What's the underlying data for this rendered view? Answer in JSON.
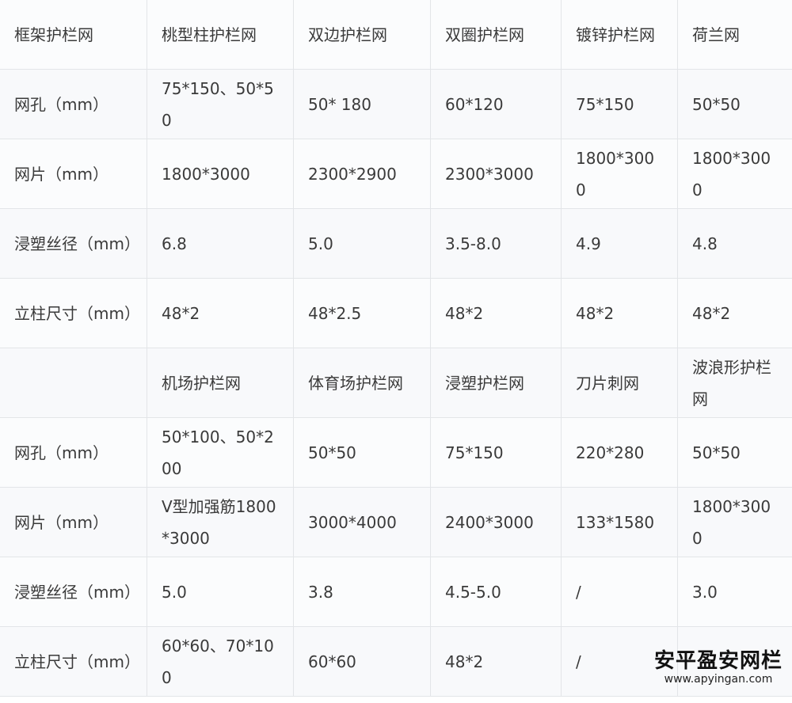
{
  "rows": [
    [
      "框架护栏网",
      "桃型柱护栏网",
      "双边护栏网",
      "双圈护栏网",
      "镀锌护栏网",
      "荷兰网"
    ],
    [
      "网孔（mm）",
      "75*150、50*50",
      "50* 180",
      "60*120",
      "75*150",
      "50*50"
    ],
    [
      "网片（mm）",
      "1800*3000",
      "2300*2900",
      "2300*3000",
      "1800*3000",
      "1800*3000"
    ],
    [
      "浸塑丝径（mm）",
      "6.8",
      "5.0",
      "3.5-8.0",
      "4.9",
      "4.8"
    ],
    [
      "立柱尺寸（mm）",
      "48*2",
      "48*2.5",
      "48*2",
      "48*2",
      "48*2"
    ],
    [
      "",
      "机场护栏网",
      "体育场护栏网",
      "浸塑护栏网",
      "刀片刺网",
      "波浪形护栏网"
    ],
    [
      "网孔（mm）",
      "50*100、50*200",
      "50*50",
      "75*150",
      "220*280",
      "50*50"
    ],
    [
      "网片（mm）",
      "V型加强筋1800*3000",
      "3000*4000",
      "2400*3000",
      "133*1580",
      "1800*3000"
    ],
    [
      "浸塑丝径（mm）",
      "5.0",
      "3.8",
      "4.5-5.0",
      "/",
      "3.0"
    ],
    [
      "立柱尺寸（mm）",
      "60*60、70*100",
      "60*60",
      "48*2",
      "/",
      ""
    ]
  ],
  "watermark": {
    "name": "安平盈安网栏",
    "url": "www.apyingan.com"
  }
}
